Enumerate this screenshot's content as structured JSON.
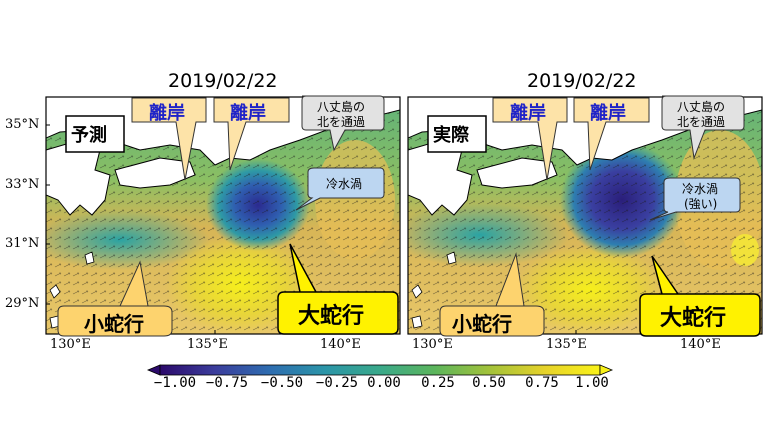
{
  "panels": [
    {
      "date": "2019/02/22",
      "tag": "予測",
      "callouts": {
        "rikugan_1": "離岸",
        "rikugan_2": "離岸",
        "hachijo_1": "八丈島の",
        "hachijo_2": "北を通過",
        "cold_1": "冷水渦",
        "cold_2": "",
        "small_meander": "小蛇行",
        "large_meander": "大蛇行"
      }
    },
    {
      "date": "2019/02/22",
      "tag": "実際",
      "callouts": {
        "rikugan_1": "離岸",
        "rikugan_2": "離岸",
        "hachijo_1": "八丈島の",
        "hachijo_2": "北を通過",
        "cold_1": "冷水渦",
        "cold_2": "(強い)",
        "small_meander": "小蛇行",
        "large_meander": "大蛇行"
      }
    }
  ],
  "axes": {
    "lat_ticks": [
      "35°N",
      "33°N",
      "31°N",
      "29°N"
    ],
    "lon_ticks": [
      "130°E",
      "135°E",
      "140°E"
    ]
  },
  "colorbar": {
    "ticks": [
      "−1.00",
      "−0.75",
      "−0.50",
      "−0.25",
      "0.00",
      "0.25",
      "0.50",
      "0.75",
      "1.00"
    ],
    "colors": [
      "#2c0a6b",
      "#3b3d9c",
      "#2e6db0",
      "#2b95a8",
      "#3aa98a",
      "#5cb55c",
      "#a3c23a",
      "#e6d22a",
      "#f9f21a"
    ]
  },
  "colors": {
    "callout_fill_beige": "#fde3a8",
    "callout_fill_grey": "#e2e2e2",
    "callout_fill_blue": "#bcd6f1",
    "callout_fill_yellow": "#fff200",
    "callout_fill_orange": "#fdd36e",
    "rikugan_text": "#1f23c8"
  }
}
